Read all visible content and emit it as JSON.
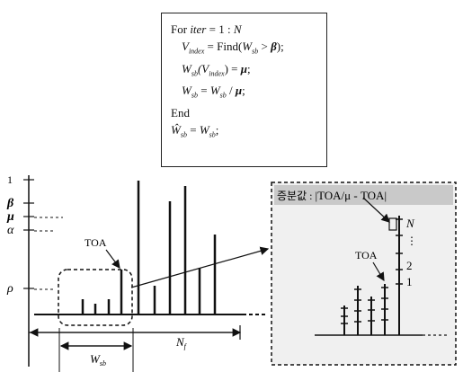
{
  "code": {
    "line1_for": "For ",
    "line1_var": "iter",
    "line1_rest": " = 1 : ",
    "line1_N": "N",
    "line2_lhs": "V",
    "line2_sub": "index",
    "line2_rhs": " = Find(",
    "line2_W": "W",
    "line2_Wsub": "sb",
    "line2_gt": " > ",
    "line2_beta": "β",
    "line2_end": ");",
    "line3_W": "W",
    "line3_Wsub": "sb",
    "line3_V": "(V",
    "line3_Vsub": "index",
    "line3_eq": ") = ",
    "line3_mu": "μ",
    "line3_end": ";",
    "line4_W": "W",
    "line4_Wsub": "sb",
    "line4_eq": " = ",
    "line4_W2": "W",
    "line4_W2sub": "sb",
    "line4_div": " / ",
    "line4_mu": "μ",
    "line4_end": ";",
    "line5": "End",
    "line6_W": "Ŵ",
    "line6_Wsub": "sb",
    "line6_eq": " = ",
    "line6_W2": "W",
    "line6_W2sub": "sb",
    "line6_end": ";"
  },
  "axis_labels": {
    "one": "1",
    "beta": "β",
    "mu": "μ",
    "alpha": "α",
    "rho": "ρ"
  },
  "labels": {
    "toa": "TOA",
    "w_sb": "W",
    "w_sb_sub": "sb",
    "n_f": "N",
    "n_f_sub": "f"
  },
  "zoom": {
    "header_korean": "증분값 : ",
    "header_formula": "|TOA/μ - TOA|",
    "toa": "TOA",
    "n_label": "N",
    "dots": "⋮",
    "two": "2",
    "one": "1"
  }
}
